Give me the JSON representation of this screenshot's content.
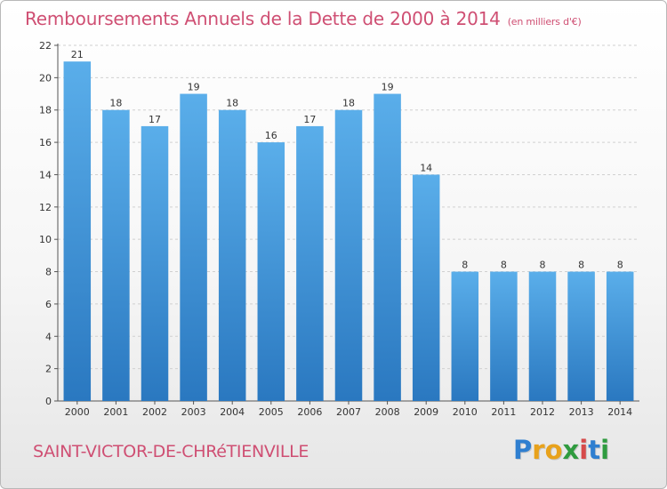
{
  "header": {
    "title": "Remboursements Annuels de la Dette de 2000 à 2014",
    "unit": "(en milliers d'€)"
  },
  "footer": {
    "commune": "SAINT-VICTOR-DE-CHRéTIENVILLE",
    "logo_letters": [
      "P",
      "r",
      "o",
      "x",
      "i",
      "t",
      "i"
    ],
    "logo_colors": [
      "#2f7fd0",
      "#e8a21c",
      "#e8a21c",
      "#2f9b3f",
      "#d64a4a",
      "#2f7fd0",
      "#2f9b3f"
    ]
  },
  "chart_data": {
    "type": "bar",
    "categories": [
      "2000",
      "2001",
      "2002",
      "2003",
      "2004",
      "2005",
      "2006",
      "2007",
      "2008",
      "2009",
      "2010",
      "2011",
      "2012",
      "2013",
      "2014"
    ],
    "values": [
      21,
      18,
      17,
      19,
      18,
      16,
      17,
      18,
      19,
      14,
      8,
      8,
      8,
      8,
      8
    ],
    "yticks": [
      "0",
      "2",
      "4",
      "6",
      "8",
      "10",
      "12",
      "14",
      "16",
      "18",
      "20",
      "22"
    ],
    "ylim": [
      0,
      22
    ],
    "grid": true,
    "bar_color_top": "#5aaeea",
    "bar_color_bottom": "#2a78c0"
  }
}
